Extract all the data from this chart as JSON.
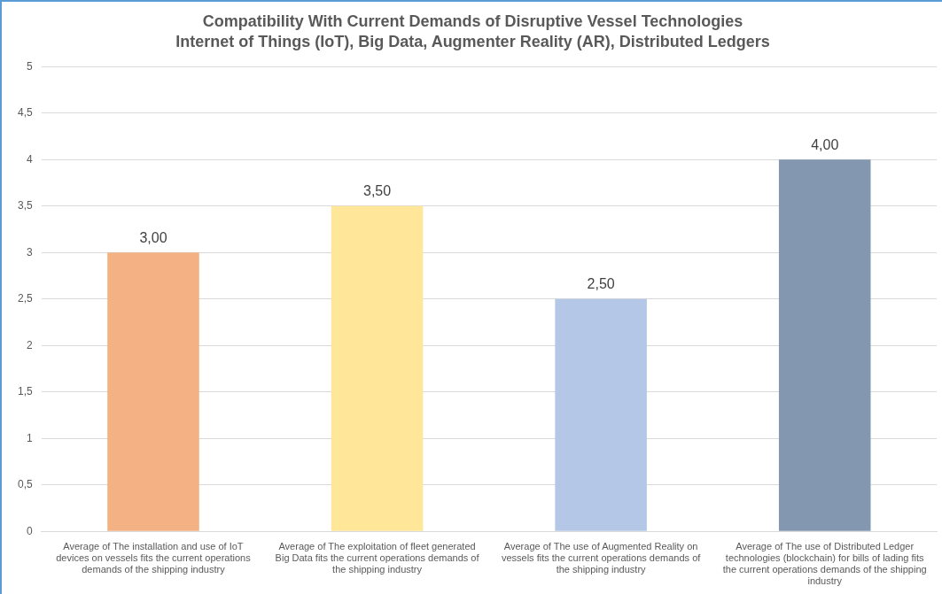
{
  "chart_data": {
    "type": "bar",
    "title": "Compatibility With Current Demands of Disruptive Vessel Technologies",
    "subtitle": "Internet of Things (IoT), Big Data, Augmenter Reality (AR), Distributed Ledgers",
    "categories": [
      "Average of The installation and use of IoT devices on vessels fits the current operations demands of the shipping industry",
      "Average of The exploitation of fleet generated Big Data fits the current operations demands of the shipping industry",
      "Average of The use of Augmented Reality on vessels fits the current operations demands of the shipping industry",
      "Average of The use of Distributed Ledger technologies (blockchain) for bills of lading fits the current operations demands of the shipping industry"
    ],
    "values": [
      3,
      3.5,
      2.5,
      4
    ],
    "colors": [
      "#f4b183",
      "#ffe699",
      "#b4c7e7",
      "#8497b0"
    ],
    "value_labels": [
      "3,00",
      "3,50",
      "2,50",
      "4,00"
    ],
    "ylim": [
      0,
      5
    ],
    "yticks": [
      0,
      {
        "value": 0.5,
        "label": "0,5"
      },
      1,
      {
        "value": 1.5,
        "label": "1,5"
      },
      2,
      {
        "value": 2.5,
        "label": "2,5"
      },
      3,
      {
        "value": 3.5,
        "label": "3,5"
      },
      4,
      {
        "value": 4.5,
        "label": "4,5"
      },
      5
    ],
    "grid": "y",
    "legend": false
  }
}
